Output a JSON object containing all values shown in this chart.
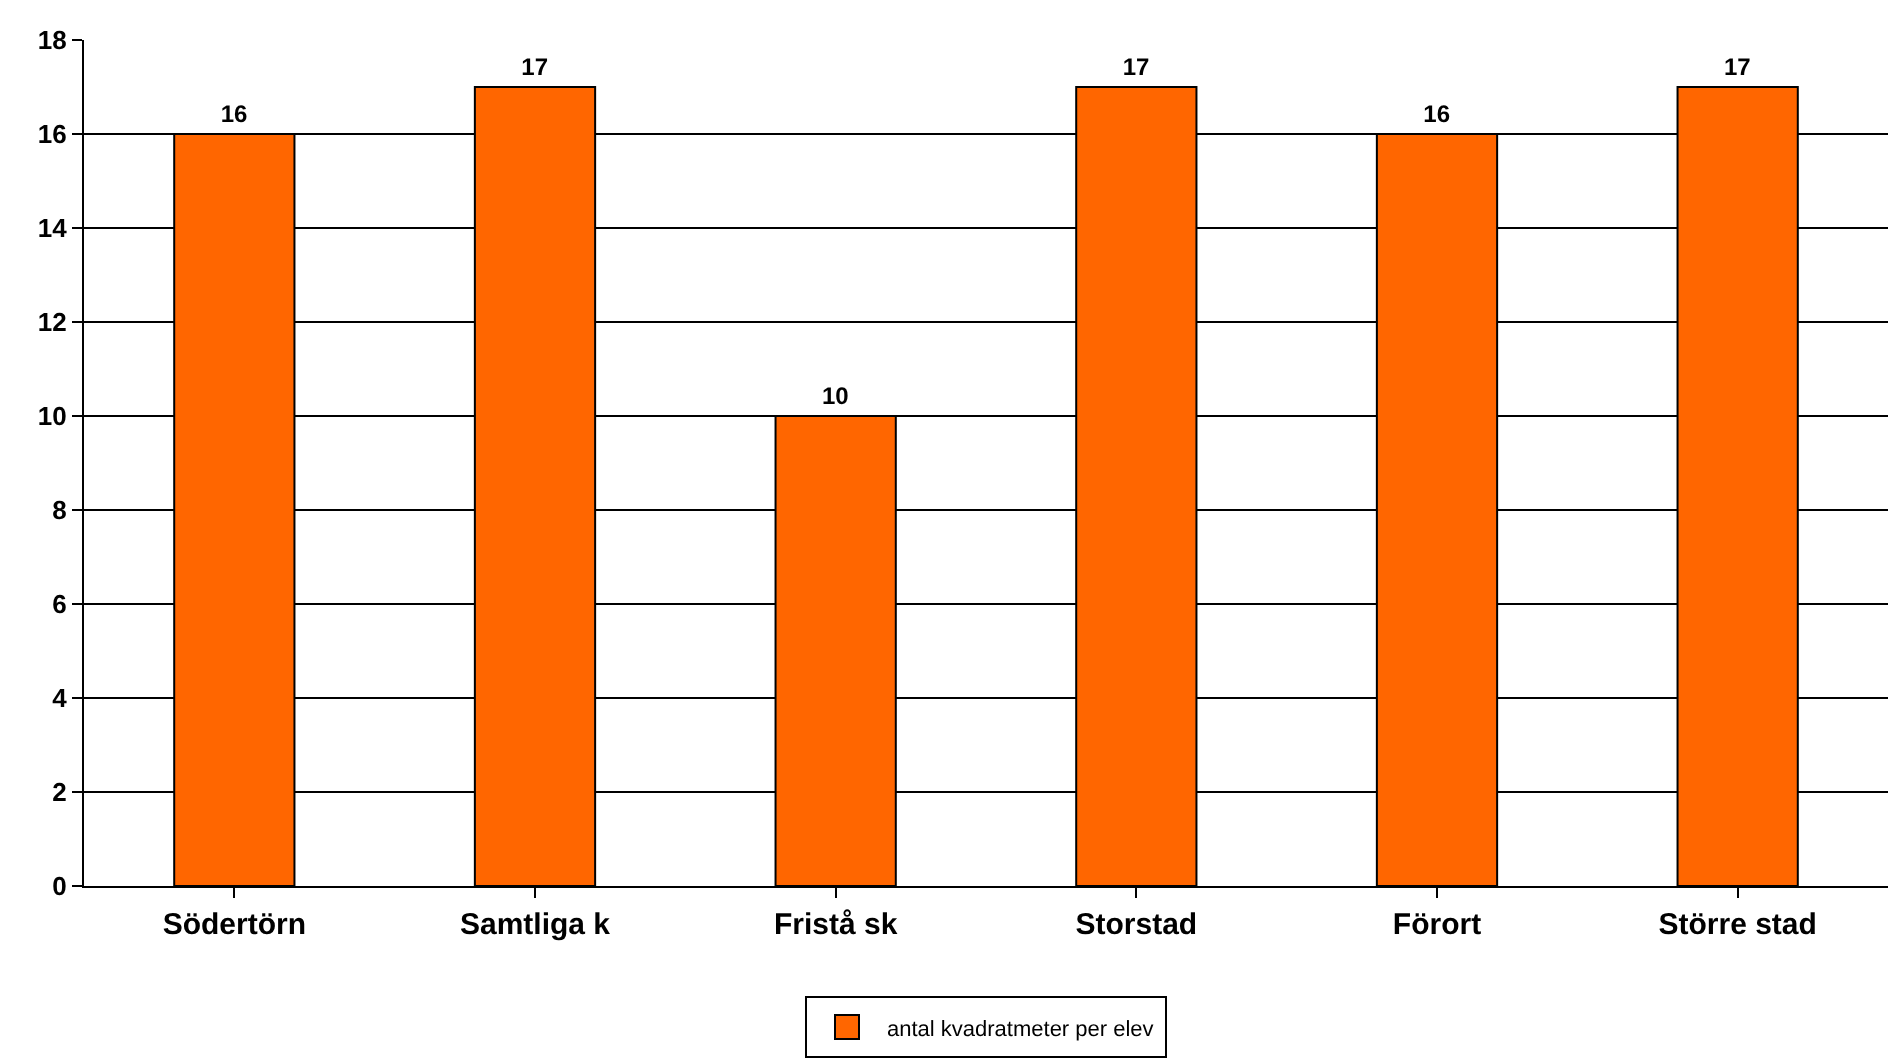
{
  "chart_data": {
    "type": "bar",
    "categories": [
      "Södertörn",
      "Samtliga k",
      "Fristå sk",
      "Storstad",
      "Förort",
      "Större stad"
    ],
    "series": [
      {
        "name": "antal kvadratmeter per elev",
        "color": "#ff6600",
        "values": [
          16,
          17,
          10,
          17,
          16,
          17
        ]
      }
    ],
    "ylim": [
      0,
      18
    ],
    "yticks": [
      0,
      2,
      4,
      6,
      8,
      10,
      12,
      14,
      16,
      18
    ],
    "grid": "y",
    "legend": "bottom",
    "data_labels": true
  }
}
